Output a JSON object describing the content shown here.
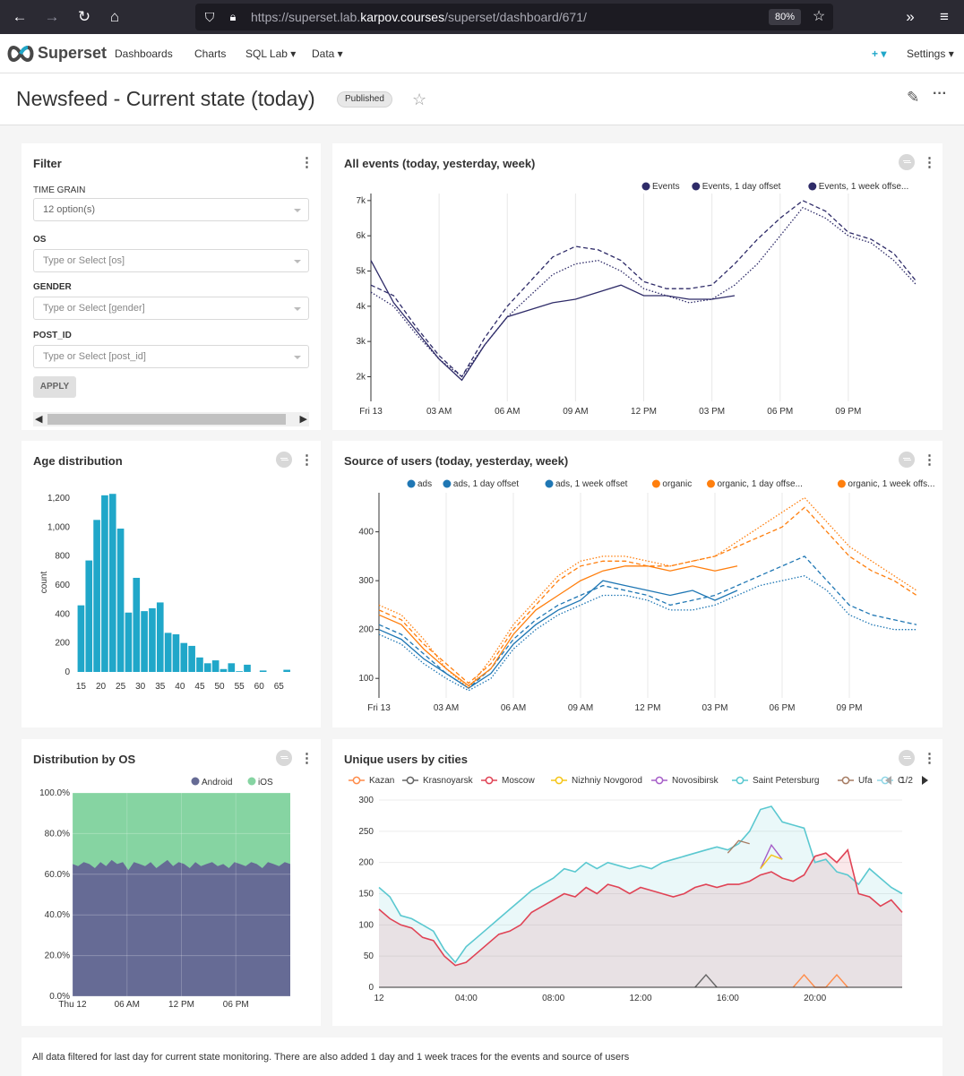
{
  "browser": {
    "url_prefix": "https://superset.lab.",
    "url_domain": "karpov.courses",
    "url_path": "/superset/dashboard/671/",
    "zoom": "80%"
  },
  "nav": {
    "brand": "Superset",
    "items": [
      "Dashboards",
      "Charts",
      "SQL Lab ▾",
      "Data ▾"
    ],
    "plus": "+ ▾",
    "settings": "Settings ▾"
  },
  "dashboard": {
    "title": "Newsfeed - Current state (today)",
    "status": "Published"
  },
  "filter": {
    "title": "Filter",
    "fields": [
      {
        "label": "TIME GRAIN",
        "value": "12 option(s)"
      },
      {
        "label": "OS",
        "value": "Type or Select [os]"
      },
      {
        "label": "GENDER",
        "value": "Type or Select [gender]"
      },
      {
        "label": "POST_ID",
        "value": "Type or Select [post_id]"
      }
    ],
    "apply": "APPLY"
  },
  "colors": {
    "navy": "#2e2b68",
    "blue": "#1f77b4",
    "orange": "#ff7f0e",
    "teal": "#20a7c9",
    "android": "#666b95",
    "ios": "#86d4a2",
    "moscow": "#e04355",
    "spb": "#5ac8d0"
  },
  "charts": [
    {
      "name": "events",
      "title": "All events (today, yesterday, week)",
      "type": "line",
      "legend": [
        "Events",
        "Events, 1 day offset",
        "Events, 1 week offse..."
      ],
      "x_ticks": [
        "Fri 13",
        "03 AM",
        "06 AM",
        "09 AM",
        "12 PM",
        "03 PM",
        "06 PM",
        "09 PM"
      ],
      "y_ticks": [
        "2k",
        "3k",
        "4k",
        "5k",
        "6k",
        "7k"
      ],
      "ylim": [
        1300,
        7200
      ],
      "series": [
        {
          "name": "Events",
          "style": "solid",
          "x": [
            0,
            1,
            2,
            3,
            4,
            5,
            6,
            7,
            8,
            9,
            10,
            11,
            12,
            13,
            14,
            15,
            16
          ],
          "values": [
            5300,
            4100,
            3300,
            2500,
            1900,
            2900,
            3700,
            3900,
            4100,
            4200,
            4400,
            4600,
            4300,
            4300,
            4200,
            4200,
            4300
          ]
        },
        {
          "name": "Events, 1 day offset",
          "style": "dashed",
          "x": [
            0,
            1,
            2,
            3,
            4,
            5,
            6,
            7,
            8,
            9,
            10,
            11,
            12,
            13,
            14,
            15,
            16,
            17,
            18,
            19,
            20,
            21,
            22,
            23,
            24
          ],
          "values": [
            4600,
            4300,
            3400,
            2600,
            2000,
            3100,
            4000,
            4700,
            5400,
            5700,
            5600,
            5300,
            4700,
            4500,
            4500,
            4600,
            5200,
            5900,
            6500,
            7000,
            6700,
            6100,
            5900,
            5500,
            4700
          ]
        },
        {
          "name": "Events, 1 week offse...",
          "style": "dotted",
          "x": [
            0,
            1,
            2,
            3,
            4,
            5,
            6,
            7,
            8,
            9,
            10,
            11,
            12,
            13,
            14,
            15,
            16,
            17,
            18,
            19,
            20,
            21,
            22,
            23,
            24
          ],
          "values": [
            4400,
            4000,
            3200,
            2500,
            2000,
            2900,
            3700,
            4300,
            4900,
            5200,
            5300,
            5000,
            4500,
            4300,
            4100,
            4200,
            4600,
            5200,
            6000,
            6800,
            6500,
            6000,
            5800,
            5300,
            4600
          ]
        }
      ]
    },
    {
      "name": "age",
      "title": "Age distribution",
      "type": "bar",
      "ylabel": "count",
      "x_ticks": [
        "15",
        "20",
        "25",
        "30",
        "35",
        "40",
        "45",
        "50",
        "55",
        "60",
        "65"
      ],
      "y_ticks": [
        "0",
        "200",
        "400",
        "600",
        "800",
        "1,000",
        "1,200"
      ],
      "ylim": [
        0,
        1250
      ],
      "xlim": [
        14,
        69
      ],
      "bin_start": 14,
      "bin_width": 2,
      "values": [
        460,
        770,
        1050,
        1220,
        1230,
        990,
        410,
        650,
        420,
        440,
        480,
        270,
        260,
        200,
        180,
        100,
        60,
        80,
        20,
        60,
        5,
        50,
        0,
        10,
        0,
        0,
        15
      ]
    },
    {
      "name": "source",
      "title": "Source of users (today, yesterday, week)",
      "type": "line",
      "legend": [
        "ads",
        "ads, 1 day offset",
        "ads, 1 week offset",
        "organic",
        "organic, 1 day offse...",
        "organic, 1 week offs..."
      ],
      "x_ticks": [
        "Fri 13",
        "03 AM",
        "06 AM",
        "09 AM",
        "12 PM",
        "03 PM",
        "06 PM",
        "09 PM"
      ],
      "y_ticks": [
        "100",
        "200",
        "300",
        "400"
      ],
      "ylim": [
        60,
        480
      ],
      "series": [
        {
          "name": "ads",
          "color": "blue",
          "style": "solid",
          "x": [
            0,
            1,
            2,
            3,
            4,
            5,
            6,
            7,
            8,
            9,
            10,
            11,
            12,
            13,
            14,
            15,
            16
          ],
          "values": [
            200,
            180,
            140,
            110,
            80,
            110,
            170,
            210,
            240,
            260,
            300,
            290,
            280,
            270,
            280,
            260,
            280
          ]
        },
        {
          "name": "ads, 1 day offset",
          "color": "blue",
          "style": "dashed",
          "x": [
            0,
            1,
            2,
            3,
            4,
            5,
            6,
            7,
            8,
            9,
            10,
            11,
            12,
            13,
            14,
            15,
            16,
            17,
            18,
            19,
            20,
            21,
            22,
            23,
            24
          ],
          "values": [
            210,
            190,
            150,
            110,
            80,
            120,
            180,
            220,
            250,
            270,
            290,
            280,
            270,
            250,
            260,
            270,
            290,
            310,
            330,
            350,
            300,
            250,
            230,
            220,
            210
          ]
        },
        {
          "name": "ads, 1 week offset",
          "color": "blue",
          "style": "dotted",
          "x": [
            0,
            1,
            2,
            3,
            4,
            5,
            6,
            7,
            8,
            9,
            10,
            11,
            12,
            13,
            14,
            15,
            16,
            17,
            18,
            19,
            20,
            21,
            22,
            23,
            24
          ],
          "values": [
            190,
            170,
            130,
            100,
            75,
            100,
            160,
            200,
            230,
            250,
            270,
            270,
            260,
            240,
            240,
            250,
            270,
            290,
            300,
            310,
            280,
            230,
            210,
            200,
            200
          ]
        },
        {
          "name": "organic",
          "color": "orange",
          "style": "solid",
          "x": [
            0,
            1,
            2,
            3,
            4,
            5,
            6,
            7,
            8,
            9,
            10,
            11,
            12,
            13,
            14,
            15,
            16
          ],
          "values": [
            230,
            210,
            160,
            120,
            85,
            120,
            190,
            240,
            270,
            300,
            320,
            330,
            330,
            320,
            330,
            320,
            330
          ]
        },
        {
          "name": "organic, 1 day offse...",
          "color": "orange",
          "style": "dashed",
          "x": [
            0,
            1,
            2,
            3,
            4,
            5,
            6,
            7,
            8,
            9,
            10,
            11,
            12,
            13,
            14,
            15,
            16,
            17,
            18,
            19,
            20,
            21,
            22,
            23,
            24
          ],
          "values": [
            240,
            220,
            170,
            130,
            90,
            130,
            200,
            250,
            300,
            330,
            340,
            340,
            330,
            330,
            340,
            350,
            370,
            390,
            410,
            450,
            400,
            350,
            320,
            300,
            270
          ]
        },
        {
          "name": "organic, 1 week offs...",
          "color": "orange",
          "style": "dotted",
          "x": [
            0,
            1,
            2,
            3,
            4,
            5,
            6,
            7,
            8,
            9,
            10,
            11,
            12,
            13,
            14,
            15,
            16,
            17,
            18,
            19,
            20,
            21,
            22,
            23,
            24
          ],
          "values": [
            250,
            230,
            180,
            120,
            80,
            140,
            210,
            260,
            310,
            340,
            350,
            350,
            340,
            330,
            340,
            350,
            380,
            410,
            440,
            470,
            420,
            370,
            340,
            310,
            280
          ]
        }
      ]
    },
    {
      "name": "os",
      "title": "Distribution by OS",
      "type": "area",
      "legend": [
        "Android",
        "iOS"
      ],
      "x_ticks": [
        "Thu 12",
        "06 AM",
        "12 PM",
        "06 PM"
      ],
      "y_ticks": [
        "0.0%",
        "20.0%",
        "40.0%",
        "60.0%",
        "80.0%",
        "100.0%"
      ],
      "ylim": [
        0,
        100
      ],
      "android": [
        65,
        64,
        66,
        65,
        63,
        66,
        64,
        67,
        65,
        66,
        62,
        66,
        65,
        64,
        66,
        63,
        65,
        67,
        64,
        66,
        65,
        63,
        66,
        64,
        65,
        66,
        64,
        65,
        63,
        66,
        65,
        64,
        66,
        65,
        63,
        66,
        65,
        64,
        66,
        65
      ]
    },
    {
      "name": "cities",
      "title": "Unique users by cities",
      "type": "area",
      "legend": [
        "Kazan",
        "Krasnoyarsk",
        "Moscow",
        "Nizhniy Novgorod",
        "Novosibirsk",
        "Saint Petersburg",
        "Ufa",
        "C"
      ],
      "legend_page": "1/2",
      "x_ticks": [
        "12",
        "04:00",
        "08:00",
        "12:00",
        "16:00",
        "20:00"
      ],
      "y_ticks": [
        "0",
        "50",
        "100",
        "150",
        "200",
        "250",
        "300"
      ],
      "ylim": [
        0,
        300
      ],
      "x": [
        0,
        1,
        2,
        3,
        4,
        5,
        6,
        7,
        8,
        9,
        10,
        11,
        12,
        13,
        14,
        15,
        16,
        17,
        18,
        19,
        20,
        21,
        22,
        23,
        24,
        25,
        26,
        27,
        28,
        29,
        30,
        31,
        32,
        33,
        34,
        35,
        36,
        37,
        38,
        39,
        40,
        41,
        42,
        43,
        44,
        45,
        46,
        47,
        48
      ],
      "moscow": [
        125,
        110,
        100,
        95,
        80,
        75,
        50,
        35,
        40,
        55,
        70,
        85,
        90,
        100,
        120,
        130,
        140,
        150,
        145,
        160,
        150,
        165,
        160,
        150,
        160,
        155,
        150,
        145,
        150,
        160,
        165,
        160,
        165,
        165,
        170,
        180,
        185,
        175,
        170,
        180,
        210,
        215,
        200,
        220,
        150,
        145,
        130,
        140,
        120
      ],
      "spb": [
        160,
        145,
        115,
        110,
        100,
        90,
        60,
        40,
        65,
        80,
        95,
        110,
        125,
        140,
        155,
        165,
        175,
        190,
        185,
        200,
        190,
        200,
        195,
        190,
        195,
        190,
        200,
        205,
        210,
        215,
        220,
        225,
        220,
        230,
        250,
        285,
        290,
        265,
        260,
        255,
        200,
        205,
        185,
        180,
        165,
        190,
        175,
        160,
        150
      ],
      "novosibirsk_x": [
        35,
        36,
        37
      ],
      "novosibirsk": [
        190,
        228,
        205
      ],
      "nizhniy_x": [
        35,
        36,
        37
      ],
      "nizhniy": [
        190,
        212,
        205
      ],
      "ufa_x": [
        32,
        33,
        34
      ],
      "ufa": [
        215,
        235,
        230
      ],
      "krasnoyarsk_x": [
        29,
        30,
        31
      ],
      "krasnoyarsk": [
        0,
        20,
        0
      ],
      "kazan_x": [
        38,
        39,
        40,
        41,
        42,
        43
      ],
      "kazan": [
        0,
        20,
        0,
        0,
        20,
        0
      ]
    }
  ],
  "footer_note": "All data filtered for last day for current state monitoring. There are also added 1 day and 1 week traces for the events and source of users"
}
